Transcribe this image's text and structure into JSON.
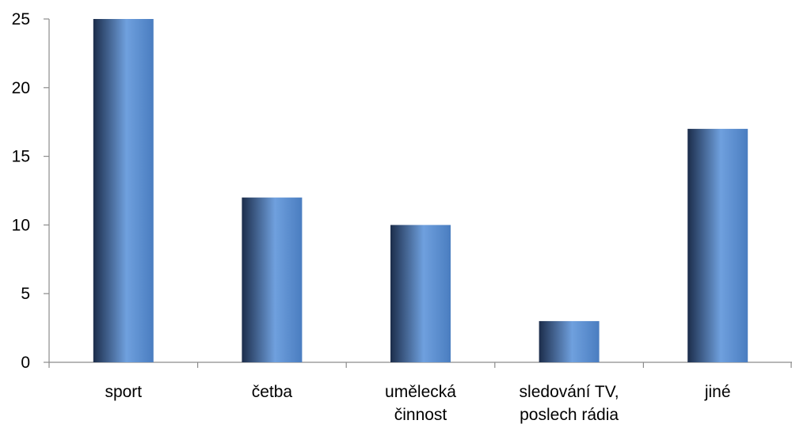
{
  "chart_data": {
    "type": "bar",
    "title": "",
    "xlabel": "",
    "ylabel": "",
    "categories": [
      [
        "sport"
      ],
      [
        "četba"
      ],
      [
        "umělecká",
        "činnost"
      ],
      [
        "sledování TV,",
        "poslech rádia"
      ],
      [
        "jiné"
      ]
    ],
    "values": [
      25,
      12,
      10,
      3,
      17
    ],
    "ylim": [
      0,
      25
    ],
    "yticks": [
      0,
      5,
      10,
      15,
      20,
      25
    ],
    "grid": false,
    "legend": "none",
    "colors": {
      "bar_dark": "#1c2d4b",
      "bar_light": "#6fa0de",
      "bar_mid": "#4a7dc0",
      "axis": "#8c8c8c"
    }
  }
}
